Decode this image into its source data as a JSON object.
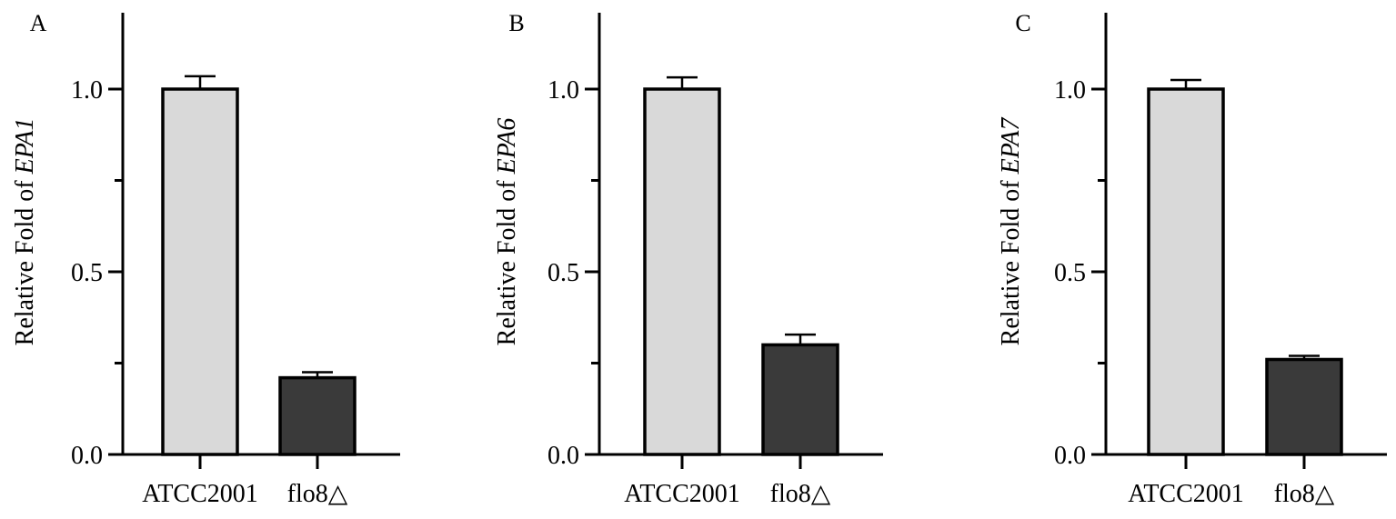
{
  "chart_data": [
    {
      "type": "bar",
      "panel_label": "A",
      "ylabel_prefix": "Relative Fold of ",
      "ylabel_gene": "EPA1",
      "categories": [
        "ATCC2001",
        "flo8△"
      ],
      "values": [
        1.0,
        0.21
      ],
      "errors": [
        0.035,
        0.015
      ],
      "bar_colors": [
        "#d9d9d9",
        "#3a3a3a"
      ],
      "ylim": [
        0,
        1.2
      ],
      "yticks": [
        0.0,
        0.5,
        1.0
      ],
      "ytick_labels": [
        "0.0",
        "0.5",
        "1.0"
      ],
      "minor_yticks": [
        0.25,
        0.75
      ]
    },
    {
      "type": "bar",
      "panel_label": "B",
      "ylabel_prefix": "Relative Fold of ",
      "ylabel_gene": "EPA6",
      "categories": [
        "ATCC2001",
        "flo8△"
      ],
      "values": [
        1.0,
        0.3
      ],
      "errors": [
        0.032,
        0.028
      ],
      "bar_colors": [
        "#d9d9d9",
        "#3a3a3a"
      ],
      "ylim": [
        0,
        1.2
      ],
      "yticks": [
        0.0,
        0.5,
        1.0
      ],
      "ytick_labels": [
        "0.0",
        "0.5",
        "1.0"
      ],
      "minor_yticks": [
        0.25,
        0.75
      ]
    },
    {
      "type": "bar",
      "panel_label": "C",
      "ylabel_prefix": "Relative Fold of ",
      "ylabel_gene": "EPA7",
      "categories": [
        "ATCC2001",
        "flo8△"
      ],
      "values": [
        1.0,
        0.26
      ],
      "errors": [
        0.025,
        0.01
      ],
      "bar_colors": [
        "#d9d9d9",
        "#3a3a3a"
      ],
      "ylim": [
        0,
        1.2
      ],
      "yticks": [
        0.0,
        0.5,
        1.0
      ],
      "ytick_labels": [
        "0.0",
        "0.5",
        "1.0"
      ],
      "minor_yticks": [
        0.25,
        0.75
      ]
    }
  ]
}
